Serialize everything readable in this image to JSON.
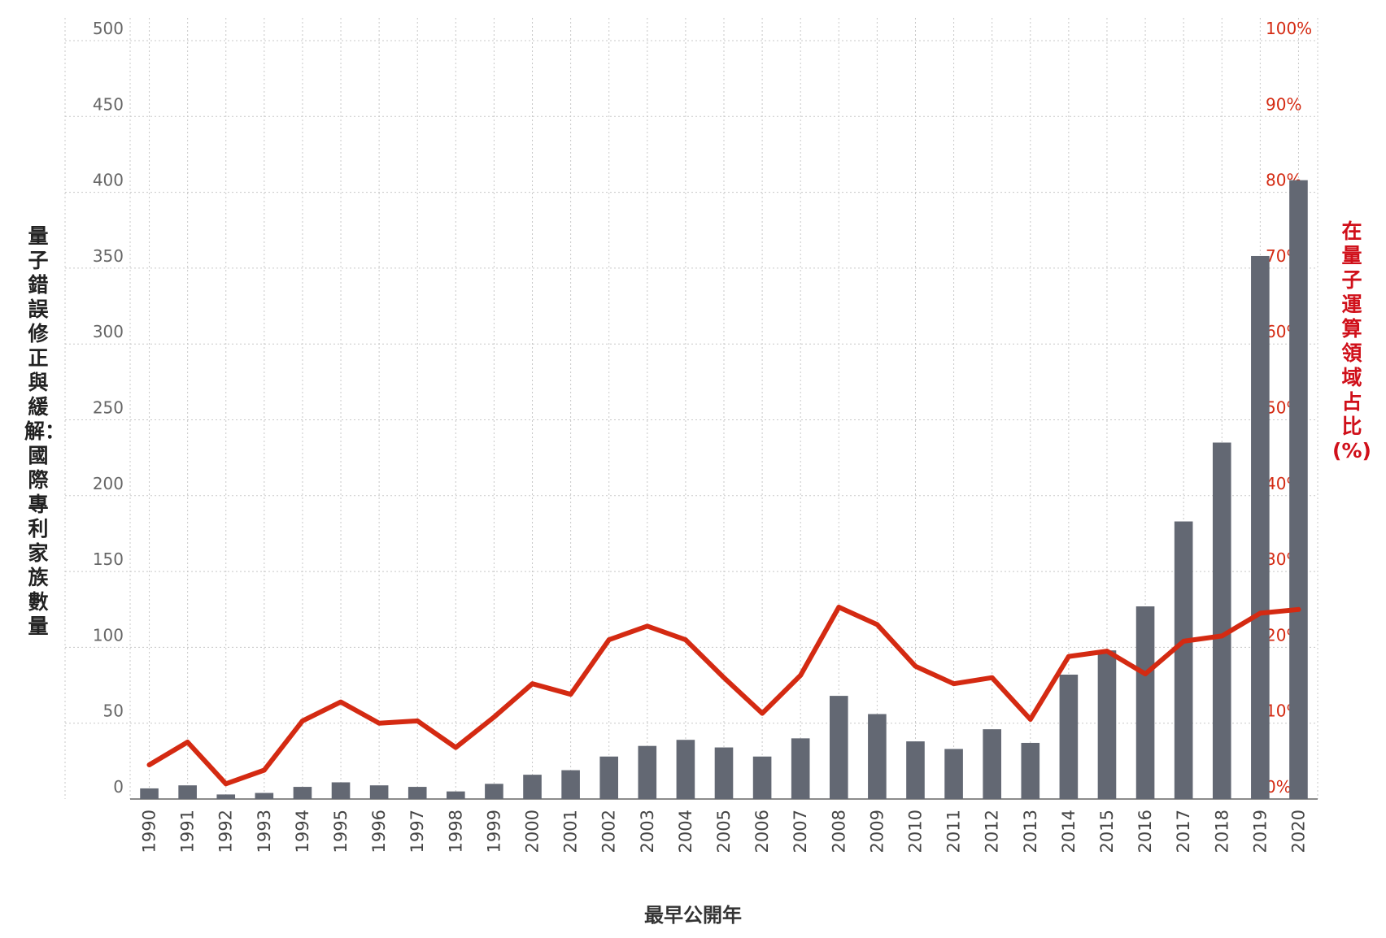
{
  "chart_data": {
    "type": "bar",
    "xlabel": "最早公開年",
    "ylabel": "量子錯誤修正與緩解：國際專利家族數量",
    "ylabel_right": "在量子運算領域占比(%)",
    "categories": [
      "1990",
      "1991",
      "1992",
      "1993",
      "1994",
      "1995",
      "1996",
      "1997",
      "1998",
      "1999",
      "2000",
      "2001",
      "2002",
      "2003",
      "2004",
      "2005",
      "2006",
      "2007",
      "2008",
      "2009",
      "2010",
      "2011",
      "2012",
      "2013",
      "2014",
      "2015",
      "2016",
      "2017",
      "2018",
      "2019",
      "2020"
    ],
    "series": [
      {
        "axis": "left",
        "kind": "bar",
        "color": "#636873",
        "values": [
          7,
          9,
          3,
          4,
          8,
          11,
          9,
          8,
          5,
          10,
          16,
          19,
          28,
          35,
          39,
          34,
          28,
          40,
          68,
          56,
          38,
          33,
          46,
          37,
          82,
          98,
          127,
          183,
          235,
          358,
          408
        ]
      },
      {
        "axis": "right",
        "kind": "line",
        "color": "#d42a12",
        "values": [
          4.5,
          7.5,
          2.0,
          3.8,
          10.3,
          12.8,
          10.0,
          10.3,
          6.8,
          10.8,
          15.2,
          13.8,
          21.0,
          22.8,
          21.0,
          16.0,
          11.3,
          16.3,
          25.3,
          23.0,
          17.5,
          15.2,
          16.0,
          10.5,
          18.8,
          19.5,
          16.5,
          20.8,
          21.5,
          24.5,
          25.0
        ]
      }
    ],
    "ylim": [
      0,
      500
    ],
    "ylim_right": [
      0,
      100
    ],
    "yticks": [
      "0",
      "50",
      "100",
      "150",
      "200",
      "250",
      "300",
      "350",
      "400",
      "450",
      "500"
    ],
    "yticks_right": [
      "0%",
      "10%",
      "20%",
      "30%",
      "40%",
      "50%",
      "60%",
      "70%",
      "80%",
      "90%",
      "100%"
    ],
    "grid": true
  }
}
